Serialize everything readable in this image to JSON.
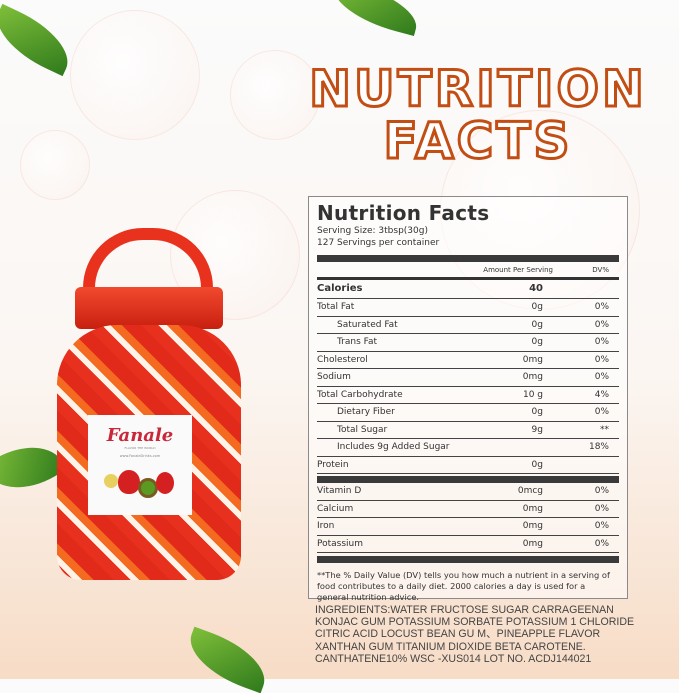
{
  "headline": {
    "line1": "NUTRITION",
    "line2": "FACTS"
  },
  "product": {
    "brand": "Fanale",
    "tagline": "FLAVOR THE WORLD",
    "website": "www.FanaleDrinks.com"
  },
  "label": {
    "title": "Nutrition Facts",
    "serving_size": "Serving Size:  3tbsp(30g)",
    "servings": "127 Servings per container",
    "col_amount": "Amount Per Serving",
    "col_dv": "DV%",
    "calories": {
      "name": "Calories",
      "amount": "40"
    },
    "nutrients": [
      {
        "name": "Total Fat",
        "amount": "0g",
        "dv": "0%",
        "indent": false
      },
      {
        "name": "Saturated Fat",
        "amount": "0g",
        "dv": "0%",
        "indent": true
      },
      {
        "name": "Trans Fat",
        "amount": "0g",
        "dv": "0%",
        "indent": true
      },
      {
        "name": "Cholesterol",
        "amount": "0mg",
        "dv": "0%",
        "indent": false
      },
      {
        "name": "Sodium",
        "amount": "0mg",
        "dv": "0%",
        "indent": false
      },
      {
        "name": "Total Carbohydrate",
        "amount": "10 g",
        "dv": "4%",
        "indent": false
      },
      {
        "name": "Dietary Fiber",
        "amount": "0g",
        "dv": "0%",
        "indent": true
      },
      {
        "name": "Total Sugar",
        "amount": "9g",
        "dv": "**",
        "indent": true
      },
      {
        "name": "Includes 9g Added Sugar",
        "amount": "",
        "dv": "18%",
        "indent": true
      },
      {
        "name": "Protein",
        "amount": "0g",
        "dv": "",
        "indent": false
      }
    ],
    "minerals": [
      {
        "name": "Vitamin D",
        "amount": "0mcg",
        "dv": "0%"
      },
      {
        "name": "Calcium",
        "amount": "0mg",
        "dv": "0%"
      },
      {
        "name": "Iron",
        "amount": "0mg",
        "dv": "0%"
      },
      {
        "name": "Potassium",
        "amount": "0mg",
        "dv": "0%"
      }
    ],
    "footnote": "**The % Daily Value (DV) tells you how much a nutrient in a serving of food contributes to a daily diet. 2000 calories a  day is used for a general nutrition advice."
  },
  "ingredients": "INGREDIENTS:WATER FRUCTOSE SUGAR CARRAGEENAN KONJAC GUM  POTASSIUM SORBATE POTASSIUM 1 CHLORIDE CITRIC ACID LOCUST BEAN GU M、PINEAPPLE FLAVOR XANTHAN GUM TITANIUM DIOXIDE BETA CAROTENE. CANTHATENE10% WSC -XUS014 LOT NO. ACDJ144021"
}
